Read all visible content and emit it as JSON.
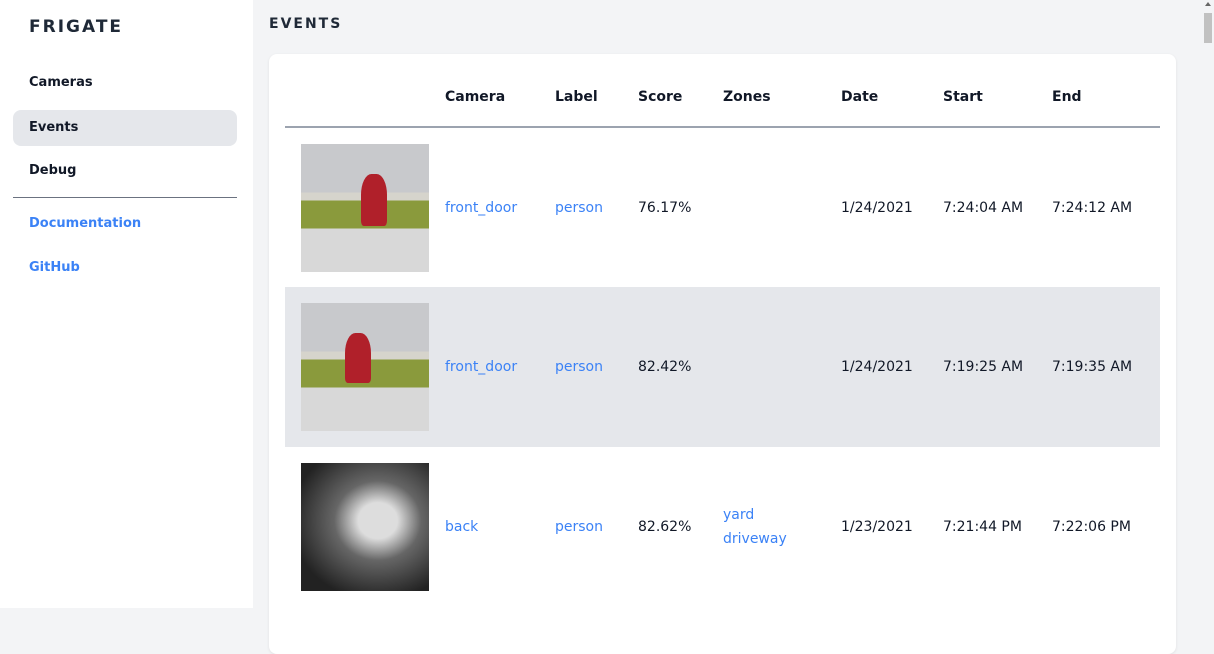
{
  "sidebar": {
    "brand": "FRIGATE",
    "items": [
      {
        "label": "Cameras"
      },
      {
        "label": "Events",
        "active": true
      },
      {
        "label": "Debug"
      }
    ],
    "links": [
      {
        "label": "Documentation"
      },
      {
        "label": "GitHub"
      }
    ]
  },
  "page": {
    "title": "EVENTS"
  },
  "table": {
    "headers": [
      "",
      "Camera",
      "Label",
      "Score",
      "Zones",
      "Date",
      "Start",
      "End"
    ],
    "rows": [
      {
        "camera": "front_door",
        "label": "person",
        "score": "76.17%",
        "zones": [
          "",
          ""
        ],
        "date": "1/24/2021",
        "start": "7:24:04 AM",
        "end": "7:24:12 AM"
      },
      {
        "camera": "front_door",
        "label": "person",
        "score": "82.42%",
        "zones": [
          "",
          ""
        ],
        "date": "1/24/2021",
        "start": "7:19:25 AM",
        "end": "7:19:35 AM"
      },
      {
        "camera": "back",
        "label": "person",
        "score": "82.62%",
        "zones": [
          "yard",
          "driveway"
        ],
        "date": "1/23/2021",
        "start": "7:21:44 PM",
        "end": "7:22:06 PM"
      }
    ]
  },
  "colors": {
    "accent": "#3b82f6",
    "active_bg": "#e5e7eb",
    "page_bg": "#f3f4f6"
  }
}
